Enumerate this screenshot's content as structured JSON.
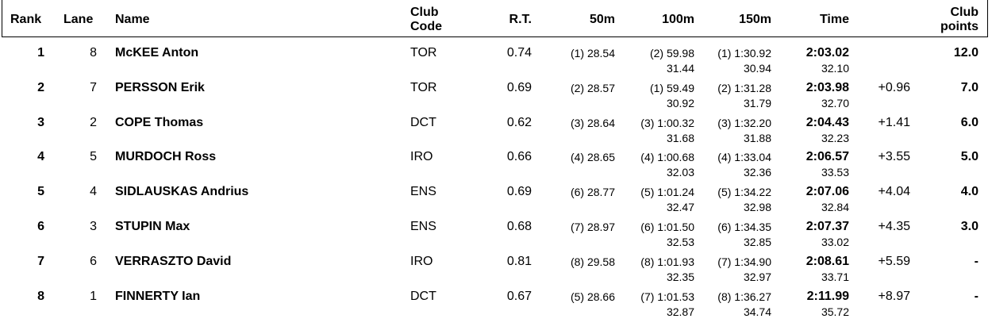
{
  "headers": {
    "rank": "Rank",
    "lane": "Lane",
    "name": "Name",
    "club_code_1": "Club",
    "club_code_2": "Code",
    "rt": "R.T.",
    "s50": "50m",
    "s100": "100m",
    "s150": "150m",
    "time": "Time",
    "club_points_1": "Club",
    "club_points_2": "points"
  },
  "rows": [
    {
      "rank": "1",
      "lane": "8",
      "name": "McKEE Anton",
      "club": "TOR",
      "rt": "0.74",
      "s50": "(1) 28.54",
      "s100": "(2) 59.98",
      "s100_split": "31.44",
      "s150": "(1) 1:30.92",
      "s150_split": "30.94",
      "time": "2:03.02",
      "time_split": "32.10",
      "behind": "",
      "points": "12.0"
    },
    {
      "rank": "2",
      "lane": "7",
      "name": "PERSSON Erik",
      "club": "TOR",
      "rt": "0.69",
      "s50": "(2) 28.57",
      "s100": "(1) 59.49",
      "s100_split": "30.92",
      "s150": "(2) 1:31.28",
      "s150_split": "31.79",
      "time": "2:03.98",
      "time_split": "32.70",
      "behind": "+0.96",
      "points": "7.0"
    },
    {
      "rank": "3",
      "lane": "2",
      "name": "COPE Thomas",
      "club": "DCT",
      "rt": "0.62",
      "s50": "(3) 28.64",
      "s100": "(3) 1:00.32",
      "s100_split": "31.68",
      "s150": "(3) 1:32.20",
      "s150_split": "31.88",
      "time": "2:04.43",
      "time_split": "32.23",
      "behind": "+1.41",
      "points": "6.0"
    },
    {
      "rank": "4",
      "lane": "5",
      "name": "MURDOCH Ross",
      "club": "IRO",
      "rt": "0.66",
      "s50": "(4) 28.65",
      "s100": "(4) 1:00.68",
      "s100_split": "32.03",
      "s150": "(4) 1:33.04",
      "s150_split": "32.36",
      "time": "2:06.57",
      "time_split": "33.53",
      "behind": "+3.55",
      "points": "5.0"
    },
    {
      "rank": "5",
      "lane": "4",
      "name": "SIDLAUSKAS Andrius",
      "club": "ENS",
      "rt": "0.69",
      "s50": "(6) 28.77",
      "s100": "(5) 1:01.24",
      "s100_split": "32.47",
      "s150": "(5) 1:34.22",
      "s150_split": "32.98",
      "time": "2:07.06",
      "time_split": "32.84",
      "behind": "+4.04",
      "points": "4.0"
    },
    {
      "rank": "6",
      "lane": "3",
      "name": "STUPIN Max",
      "club": "ENS",
      "rt": "0.68",
      "s50": "(7) 28.97",
      "s100": "(6) 1:01.50",
      "s100_split": "32.53",
      "s150": "(6) 1:34.35",
      "s150_split": "32.85",
      "time": "2:07.37",
      "time_split": "33.02",
      "behind": "+4.35",
      "points": "3.0"
    },
    {
      "rank": "7",
      "lane": "6",
      "name": "VERRASZTO David",
      "club": "IRO",
      "rt": "0.81",
      "s50": "(8) 29.58",
      "s100": "(8) 1:01.93",
      "s100_split": "32.35",
      "s150": "(7) 1:34.90",
      "s150_split": "32.97",
      "time": "2:08.61",
      "time_split": "33.71",
      "behind": "+5.59",
      "points": "-"
    },
    {
      "rank": "8",
      "lane": "1",
      "name": "FINNERTY Ian",
      "club": "DCT",
      "rt": "0.67",
      "s50": "(5) 28.66",
      "s100": "(7) 1:01.53",
      "s100_split": "32.87",
      "s150": "(8) 1:36.27",
      "s150_split": "34.74",
      "time": "2:11.99",
      "time_split": "35.72",
      "behind": "+8.97",
      "points": "-"
    }
  ]
}
